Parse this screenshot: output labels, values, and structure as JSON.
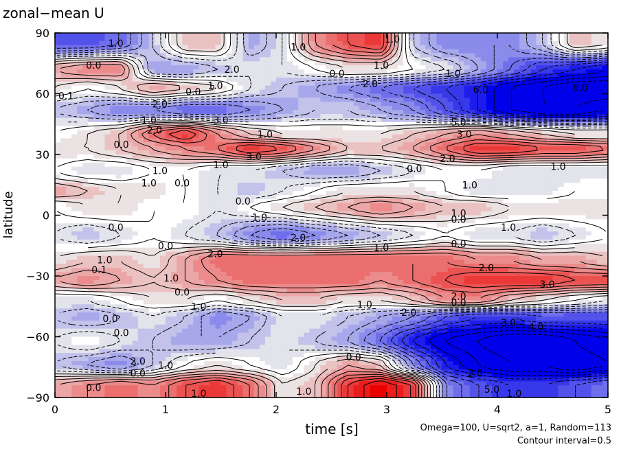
{
  "chart_data": {
    "type": "heatmap",
    "title": "zonal−mean U",
    "xlabel": "time [s]",
    "ylabel": "latitude",
    "xlim": [
      0,
      5
    ],
    "ylim": [
      -90,
      90
    ],
    "x_ticks": [
      0,
      1,
      2,
      3,
      4,
      5
    ],
    "y_ticks": [
      {
        "value": 90,
        "label": "90"
      },
      {
        "value": 60,
        "label": "60"
      },
      {
        "value": 30,
        "label": "30"
      },
      {
        "value": 0,
        "label": "0"
      },
      {
        "value": -30,
        "label": "−30"
      },
      {
        "value": -60,
        "label": "−60"
      },
      {
        "value": -90,
        "label": "−90"
      }
    ],
    "contour_interval": 0.5,
    "colors": {
      "positive": "#e00000",
      "negative": "#0000e0",
      "zero": "#ffffff"
    },
    "bands": [
      {
        "lat": 85,
        "values": [
          -3.0,
          -3.0,
          -2.5,
          -1.0,
          1.0,
          1.0,
          -1.5,
          -0.5,
          2.0,
          3.0,
          3.5,
          -1.0,
          -2.0,
          -2.0,
          -2.0,
          -1.0,
          1.0,
          0.5
        ]
      },
      {
        "lat": 72,
        "values": [
          1.5,
          2.0,
          2.0,
          -1.5,
          -1.5,
          -1.0,
          -0.5,
          -0.5,
          0.0,
          0.5,
          0.5,
          0.0,
          -0.5,
          -1.5,
          -2.5,
          -3.5,
          -4.0,
          -4.5
        ]
      },
      {
        "lat": 63,
        "values": [
          0.5,
          0.0,
          0.5,
          1.5,
          1.0,
          0.5,
          -0.5,
          -1.0,
          -1.5,
          -2.0,
          -2.5,
          -3.0,
          -3.5,
          -4.0,
          -5.0,
          -5.5,
          -6.0,
          -6.0
        ]
      },
      {
        "lat": 52,
        "values": [
          -1.0,
          -1.5,
          -2.0,
          -2.0,
          -2.5,
          -2.5,
          -2.0,
          -1.5,
          -1.0,
          -1.0,
          -1.5,
          -2.0,
          -3.0,
          -4.0,
          -5.0,
          -5.5,
          -5.5,
          -5.0
        ]
      },
      {
        "lat": 40,
        "values": [
          0.0,
          0.5,
          1.0,
          2.5,
          3.5,
          2.0,
          1.0,
          0.5,
          0.5,
          0.5,
          0.5,
          1.0,
          1.5,
          2.0,
          1.5,
          1.0,
          0.5,
          0.5
        ]
      },
      {
        "lat": 33,
        "values": [
          0.5,
          0.5,
          1.0,
          1.5,
          2.0,
          2.5,
          3.5,
          3.0,
          2.0,
          1.0,
          1.0,
          1.5,
          2.5,
          3.5,
          3.5,
          3.0,
          3.0,
          2.5
        ]
      },
      {
        "lat": 22,
        "values": [
          0.0,
          -0.5,
          -0.5,
          0.0,
          0.0,
          -0.5,
          -0.5,
          -1.0,
          -1.5,
          -1.5,
          -1.0,
          -0.5,
          0.0,
          0.0,
          -0.5,
          -0.5,
          -0.5,
          -0.5
        ]
      },
      {
        "lat": 12,
        "values": [
          1.5,
          1.0,
          0.5,
          0.5,
          0.0,
          -0.5,
          -1.0,
          -0.5,
          0.0,
          0.5,
          0.5,
          0.5,
          0.0,
          -0.5,
          -0.5,
          -0.5,
          0.0,
          0.0
        ]
      },
      {
        "lat": 4,
        "values": [
          0.0,
          0.5,
          0.5,
          0.0,
          0.0,
          -0.5,
          0.0,
          0.5,
          1.0,
          1.5,
          2.0,
          1.5,
          1.0,
          1.0,
          0.5,
          0.5,
          0.5,
          0.5
        ]
      },
      {
        "lat": -10,
        "values": [
          -0.5,
          -1.0,
          -0.5,
          0.0,
          -0.5,
          -1.0,
          -2.0,
          -2.5,
          -2.0,
          -1.5,
          -1.0,
          -0.5,
          0.0,
          -0.5,
          -0.5,
          -1.0,
          -0.5,
          0.0
        ]
      },
      {
        "lat": -22,
        "values": [
          0.5,
          1.0,
          1.0,
          0.5,
          1.5,
          2.5,
          2.5,
          2.5,
          2.5,
          2.5,
          2.5,
          2.5,
          2.5,
          2.0,
          2.0,
          1.5,
          1.5,
          1.0
        ]
      },
      {
        "lat": -32,
        "values": [
          1.5,
          2.0,
          1.5,
          1.0,
          1.5,
          2.0,
          2.5,
          2.5,
          2.5,
          2.5,
          2.0,
          2.5,
          3.0,
          3.5,
          3.5,
          3.5,
          3.0,
          3.0
        ]
      },
      {
        "lat": -42,
        "values": [
          -0.5,
          -0.5,
          0.0,
          0.5,
          0.5,
          0.0,
          0.5,
          1.0,
          1.0,
          0.5,
          0.5,
          1.0,
          2.0,
          2.0,
          1.0,
          0.5,
          0.0,
          -0.5
        ]
      },
      {
        "lat": -50,
        "values": [
          -1.0,
          -1.5,
          -1.0,
          -0.5,
          -1.0,
          -2.0,
          -1.5,
          -0.5,
          -0.5,
          -1.0,
          -1.5,
          -2.0,
          -3.0,
          -3.5,
          -3.5,
          -3.0,
          -3.0,
          -3.0
        ]
      },
      {
        "lat": -62,
        "values": [
          -0.5,
          0.0,
          -0.5,
          -1.0,
          -1.5,
          -1.5,
          -1.0,
          -0.5,
          -1.0,
          -1.5,
          -2.5,
          -4.0,
          -5.0,
          -5.5,
          -6.0,
          -6.0,
          -5.5,
          -5.0
        ]
      },
      {
        "lat": -74,
        "values": [
          -1.0,
          -1.5,
          -2.0,
          -1.0,
          0.0,
          0.5,
          0.0,
          -0.5,
          0.5,
          1.5,
          1.0,
          -2.0,
          -4.0,
          -5.0,
          -5.5,
          -5.5,
          -6.0,
          -5.5
        ]
      },
      {
        "lat": -84,
        "values": [
          1.5,
          2.0,
          2.5,
          2.0,
          3.0,
          3.5,
          2.5,
          0.5,
          1.0,
          3.5,
          4.5,
          3.5,
          -2.0,
          -3.0,
          -3.5,
          -3.5,
          -3.0,
          -2.5
        ]
      }
    ],
    "contour_labels": [
      {
        "text": "1.0",
        "t": 0.55,
        "lat": 85
      },
      {
        "text": "0.0",
        "t": 0.35,
        "lat": 74
      },
      {
        "text": "1.0",
        "t": 2.2,
        "lat": 83
      },
      {
        "text": "1.0",
        "t": 3.05,
        "lat": 87
      },
      {
        "text": "0.0",
        "t": 2.55,
        "lat": 70
      },
      {
        "text": "1.0",
        "t": 2.95,
        "lat": 74
      },
      {
        "text": "2.0",
        "t": 1.6,
        "lat": 72
      },
      {
        "text": "1.0",
        "t": 1.45,
        "lat": 64
      },
      {
        "text": "0.0",
        "t": 1.25,
        "lat": 61
      },
      {
        "text": "1.0",
        "t": 3.6,
        "lat": 70
      },
      {
        "text": "2.0",
        "t": 2.85,
        "lat": 65
      },
      {
        "text": "6.0",
        "t": 3.85,
        "lat": 62
      },
      {
        "text": "6.0",
        "t": 4.75,
        "lat": 63
      },
      {
        "text": "0.1",
        "t": 0.1,
        "lat": 59
      },
      {
        "text": "2.0",
        "t": 0.95,
        "lat": 55
      },
      {
        "text": "3.0",
        "t": 1.5,
        "lat": 47
      },
      {
        "text": "1.0",
        "t": 0.85,
        "lat": 47
      },
      {
        "text": "2.0",
        "t": 0.9,
        "lat": 42
      },
      {
        "text": "0.0",
        "t": 0.6,
        "lat": 35
      },
      {
        "text": "5.0",
        "t": 3.65,
        "lat": 46
      },
      {
        "text": "3.0",
        "t": 3.7,
        "lat": 40
      },
      {
        "text": "1.0",
        "t": 1.9,
        "lat": 40
      },
      {
        "text": "3.0",
        "t": 1.8,
        "lat": 29
      },
      {
        "text": "1.0",
        "t": 1.5,
        "lat": 25
      },
      {
        "text": "2.0",
        "t": 3.55,
        "lat": 28
      },
      {
        "text": "1.0",
        "t": 4.55,
        "lat": 24
      },
      {
        "text": "1.0",
        "t": 0.95,
        "lat": 22
      },
      {
        "text": "1.0",
        "t": 0.85,
        "lat": 16
      },
      {
        "text": "0.0",
        "t": 1.15,
        "lat": 16
      },
      {
        "text": "0.0",
        "t": 3.25,
        "lat": 23
      },
      {
        "text": "1.0",
        "t": 3.75,
        "lat": 15
      },
      {
        "text": "0.0",
        "t": 1.7,
        "lat": 7
      },
      {
        "text": "1.0",
        "t": 3.65,
        "lat": 1
      },
      {
        "text": "0.0",
        "t": 3.65,
        "lat": -2
      },
      {
        "text": "1.0",
        "t": 1.85,
        "lat": -1
      },
      {
        "text": "0.0",
        "t": 0.55,
        "lat": -6
      },
      {
        "text": "2.0",
        "t": 2.2,
        "lat": -11
      },
      {
        "text": "1.0",
        "t": 4.1,
        "lat": -6
      },
      {
        "text": "0.0",
        "t": 3.65,
        "lat": -14
      },
      {
        "text": "0.0",
        "t": 1.0,
        "lat": -15
      },
      {
        "text": "1.0",
        "t": 2.95,
        "lat": -16
      },
      {
        "text": "2.0",
        "t": 1.45,
        "lat": -19
      },
      {
        "text": "1.0",
        "t": 0.45,
        "lat": -22
      },
      {
        "text": "0.1",
        "t": 0.4,
        "lat": -27
      },
      {
        "text": "1.0",
        "t": 1.05,
        "lat": -31
      },
      {
        "text": "2.0",
        "t": 3.9,
        "lat": -26
      },
      {
        "text": "3.0",
        "t": 4.45,
        "lat": -34
      },
      {
        "text": "0.0",
        "t": 1.15,
        "lat": -38
      },
      {
        "text": "1.0",
        "t": 1.3,
        "lat": -45
      },
      {
        "text": "2.0",
        "t": 3.65,
        "lat": -40
      },
      {
        "text": "0.0",
        "t": 3.65,
        "lat": -43
      },
      {
        "text": "1.0",
        "t": 2.8,
        "lat": -44
      },
      {
        "text": "2.0",
        "t": 3.2,
        "lat": -48
      },
      {
        "text": "0.0",
        "t": 0.5,
        "lat": -51
      },
      {
        "text": "0.0",
        "t": 0.6,
        "lat": -58
      },
      {
        "text": "3.0",
        "t": 4.1,
        "lat": -53
      },
      {
        "text": "4.0",
        "t": 4.35,
        "lat": -55
      },
      {
        "text": "2.0",
        "t": 0.75,
        "lat": -72
      },
      {
        "text": "1.0",
        "t": 1.0,
        "lat": -74
      },
      {
        "text": "0.0",
        "t": 0.75,
        "lat": -78
      },
      {
        "text": "0.0",
        "t": 0.35,
        "lat": -85
      },
      {
        "text": "1.0",
        "t": 1.3,
        "lat": -88
      },
      {
        "text": "1.0",
        "t": 2.25,
        "lat": -87
      },
      {
        "text": "0.0",
        "t": 2.7,
        "lat": -70
      },
      {
        "text": "2.0",
        "t": 3.8,
        "lat": -78
      },
      {
        "text": "5.0",
        "t": 3.95,
        "lat": -86
      },
      {
        "text": "1.0",
        "t": 4.15,
        "lat": -88
      }
    ]
  },
  "footnote_params": "Omega=100, U=sqrt2, a=1, Random=113",
  "footnote_contour": "Contour interval=0.5"
}
